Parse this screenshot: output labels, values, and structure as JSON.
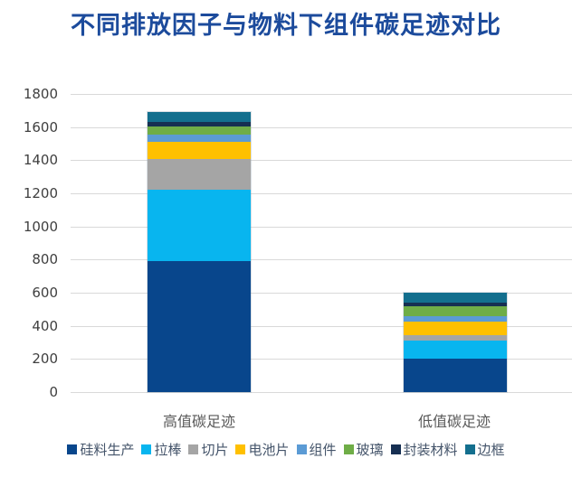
{
  "title": {
    "text": "不同排放因子与物料下组件碳足迹对比",
    "color": "#1C4B9C"
  },
  "chart_data": {
    "type": "bar",
    "stacked": true,
    "title": "不同排放因子与物料下组件碳足迹对比",
    "categories": [
      "高值碳足迹",
      "低值碳足迹"
    ],
    "series": [
      {
        "name": "硅料生产",
        "color": "#08468C",
        "values": [
          790,
          200
        ]
      },
      {
        "name": "拉棒",
        "color": "#08B5EF",
        "values": [
          430,
          113
        ]
      },
      {
        "name": "切片",
        "color": "#A5A5A5",
        "values": [
          185,
          30
        ]
      },
      {
        "name": "电池片",
        "color": "#FFC000",
        "values": [
          105,
          84
        ]
      },
      {
        "name": "组件",
        "color": "#5B9BD5",
        "values": [
          45,
          33
        ]
      },
      {
        "name": "玻璃",
        "color": "#6FAD47",
        "values": [
          50,
          56
        ]
      },
      {
        "name": "封装材料",
        "color": "#162F52",
        "values": [
          28,
          22
        ]
      },
      {
        "name": "边框",
        "color": "#136F8E",
        "values": [
          57,
          60
        ]
      }
    ],
    "xlabel": "",
    "ylabel": "",
    "ylim": [
      0,
      1800
    ],
    "ytick_step": 200,
    "grid": true,
    "legend_position": "bottom",
    "gridline_color": "#D9D9D9",
    "axis_label_color": "#3F3F3F",
    "category_label_color": "#595959",
    "legend_text_color": "#44546A"
  }
}
